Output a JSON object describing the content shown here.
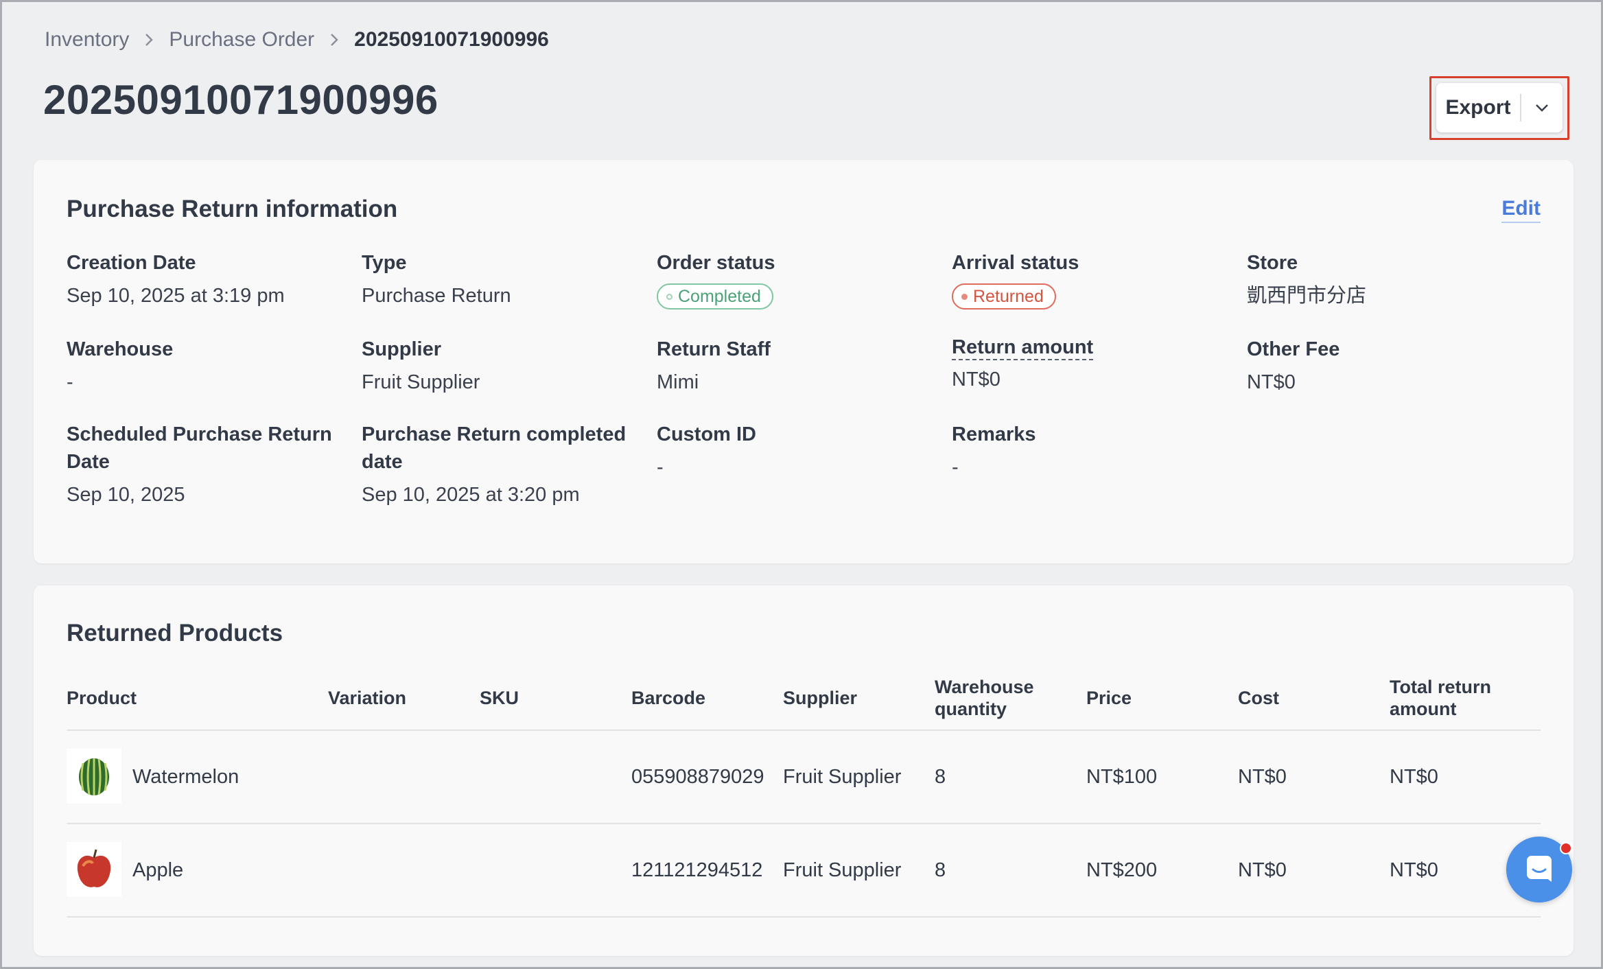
{
  "breadcrumb": {
    "items": [
      "Inventory",
      "Purchase Order"
    ],
    "current": "20250910071900996"
  },
  "page": {
    "title": "20250910071900996"
  },
  "toolbar": {
    "export_label": "Export"
  },
  "info": {
    "title": "Purchase Return information",
    "edit_label": "Edit",
    "fields": {
      "creation_date": {
        "label": "Creation Date",
        "value": "Sep 10, 2025 at 3:19 pm"
      },
      "type": {
        "label": "Type",
        "value": "Purchase Return"
      },
      "order_status": {
        "label": "Order status",
        "value": "Completed"
      },
      "arrival_status": {
        "label": "Arrival status",
        "value": "Returned"
      },
      "store": {
        "label": "Store",
        "value": "凱西門市分店"
      },
      "warehouse": {
        "label": "Warehouse",
        "value": "-"
      },
      "supplier": {
        "label": "Supplier",
        "value": "Fruit Supplier"
      },
      "return_staff": {
        "label": "Return Staff",
        "value": "Mimi"
      },
      "return_amount": {
        "label": "Return amount",
        "value": "NT$0"
      },
      "other_fee": {
        "label": "Other Fee",
        "value": "NT$0"
      },
      "scheduled_date": {
        "label_1": "Scheduled Purchase Return",
        "label_2": "Date",
        "value": "Sep 10, 2025"
      },
      "completed_date": {
        "label_1": "Purchase Return completed",
        "label_2": "date",
        "value": "Sep 10, 2025 at 3:20 pm"
      },
      "custom_id": {
        "label": "Custom ID",
        "value": "-"
      },
      "remarks": {
        "label": "Remarks",
        "value": "-"
      }
    },
    "status_colors": {
      "completed": "#4ba278",
      "returned": "#d4553f"
    }
  },
  "products": {
    "title": "Returned Products",
    "columns": {
      "product": "Product",
      "variation": "Variation",
      "sku": "SKU",
      "barcode": "Barcode",
      "supplier": "Supplier",
      "warehouse_qty_1": "Warehouse",
      "warehouse_qty_2": "quantity",
      "price": "Price",
      "cost": "Cost",
      "total_1": "Total return",
      "total_2": "amount"
    },
    "rows": [
      {
        "icon": "watermelon-image",
        "name": "Watermelon",
        "variation": "",
        "sku": "",
        "barcode": "055908879029",
        "supplier": "Fruit Supplier",
        "warehouse_qty": "8",
        "price": "NT$100",
        "cost": "NT$0",
        "total": "NT$0"
      },
      {
        "icon": "apple-image",
        "name": "Apple",
        "variation": "",
        "sku": "",
        "barcode": "121121294512",
        "supplier": "Fruit Supplier",
        "warehouse_qty": "8",
        "price": "NT$200",
        "cost": "NT$0",
        "total": "NT$0"
      }
    ]
  },
  "accent_color": "#4a8fe8",
  "chat": {
    "icon": "chat-icon",
    "has_notification": true
  }
}
